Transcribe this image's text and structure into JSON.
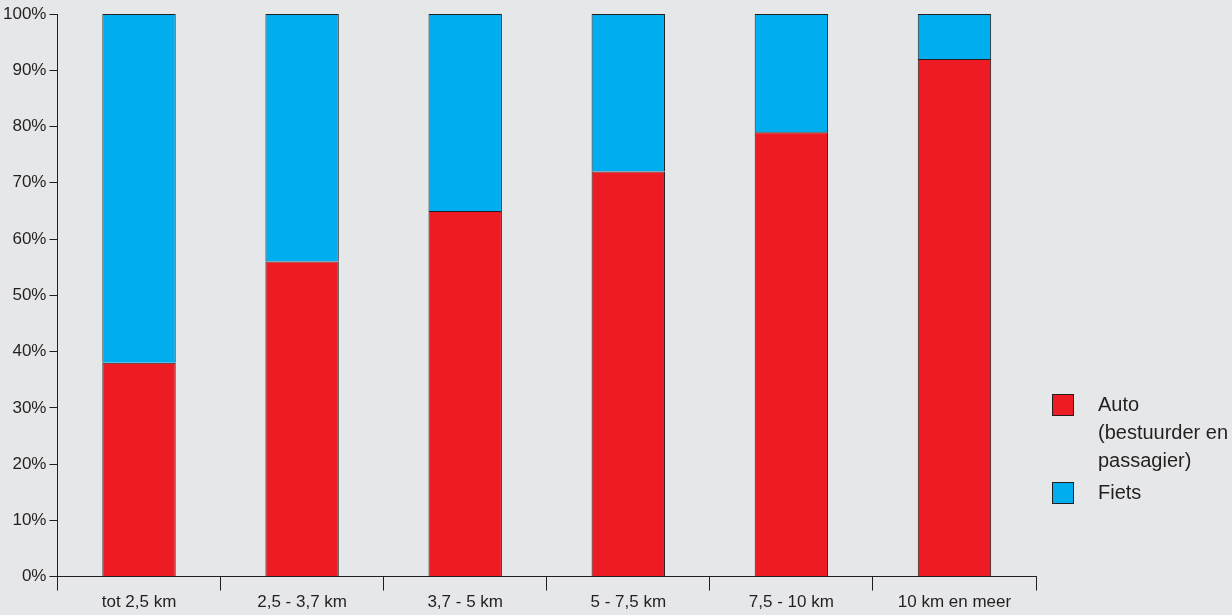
{
  "chart_data": {
    "type": "bar",
    "stacked": true,
    "categories": [
      "tot 2,5 km",
      "2,5 - 3,7 km",
      "3,7 - 5 km",
      "5 - 7,5 km",
      "7,5 - 10 km",
      "10 km en meer"
    ],
    "series": [
      {
        "name": "Auto (bestuurder en passagier)",
        "color": "#ed1c24",
        "values": [
          38,
          56,
          65,
          72,
          79,
          92
        ]
      },
      {
        "name": "Fiets",
        "color": "#00aeef",
        "values": [
          62,
          44,
          35,
          28,
          21,
          8
        ]
      }
    ],
    "ylim": [
      0,
      100
    ],
    "yticks": [
      {
        "value": 0,
        "label": "0%"
      },
      {
        "value": 10,
        "label": "10%"
      },
      {
        "value": 20,
        "label": "20%"
      },
      {
        "value": 30,
        "label": "30%"
      },
      {
        "value": 40,
        "label": "40%"
      },
      {
        "value": 50,
        "label": "50%"
      },
      {
        "value": 60,
        "label": "60%"
      },
      {
        "value": 70,
        "label": "70%"
      },
      {
        "value": 80,
        "label": "80%"
      },
      {
        "value": 90,
        "label": "90%"
      },
      {
        "value": 100,
        "label": "100%"
      }
    ],
    "grid": false,
    "legend": "right"
  }
}
